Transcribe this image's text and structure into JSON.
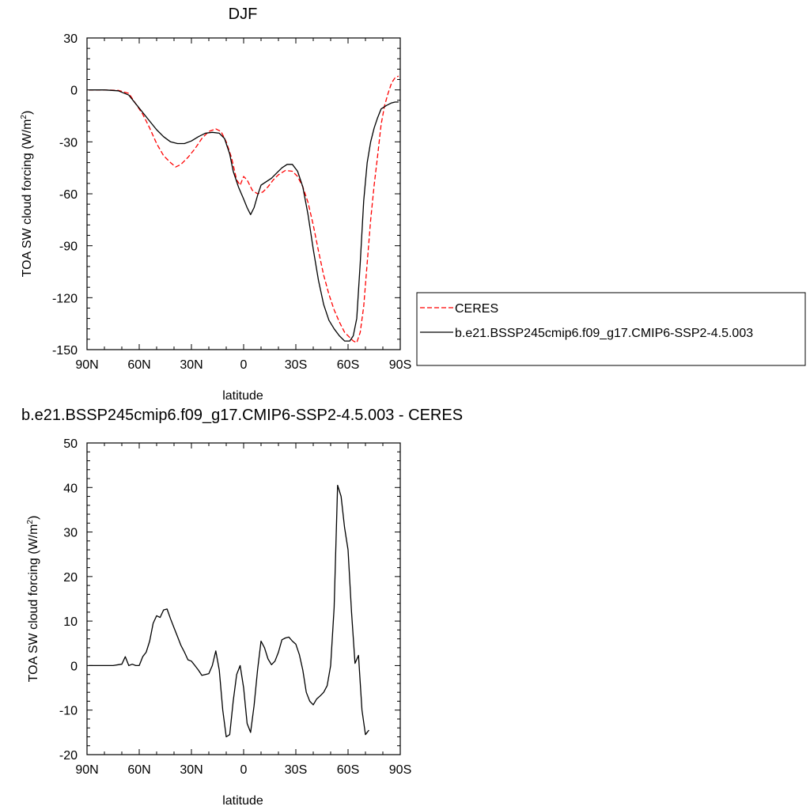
{
  "chart_data": [
    {
      "type": "line",
      "title": "DJF",
      "xlabel": "latitude",
      "ylabel": "TOA SW cloud forcing (W/m",
      "ylabel_sup": "2",
      "ylabel_close": ")",
      "xlim": [
        90,
        -90
      ],
      "ylim": [
        -150,
        30
      ],
      "x_ticks": [
        90,
        60,
        30,
        0,
        -30,
        -60,
        -90
      ],
      "x_tick_labels": [
        "90N",
        "60N",
        "30N",
        "0",
        "30S",
        "60S",
        "90S"
      ],
      "y_ticks": [
        30,
        0,
        -30,
        -60,
        -90,
        -120,
        -150
      ],
      "y_tick_labels": [
        "30",
        "0",
        "-30",
        "-60",
        "-90",
        "-120",
        "-150"
      ],
      "legend_position": "right",
      "series": [
        {
          "name": "CERES",
          "color": "#ff0000",
          "dash": "dashed",
          "points": [
            [
              89,
              0
            ],
            [
              80,
              0
            ],
            [
              72,
              -0.3
            ],
            [
              66,
              -2
            ],
            [
              62,
              -8
            ],
            [
              58,
              -14
            ],
            [
              54,
              -22
            ],
            [
              50,
              -31
            ],
            [
              46,
              -38
            ],
            [
              42,
              -42
            ],
            [
              39,
              -44.5
            ],
            [
              36,
              -43
            ],
            [
              32,
              -39
            ],
            [
              28,
              -34
            ],
            [
              24,
              -28
            ],
            [
              20,
              -24
            ],
            [
              16,
              -22.5
            ],
            [
              13,
              -24
            ],
            [
              10,
              -30
            ],
            [
              7,
              -39
            ],
            [
              4,
              -52
            ],
            [
              2,
              -55
            ],
            [
              0,
              -50
            ],
            [
              -2,
              -52
            ],
            [
              -5,
              -58
            ],
            [
              -8,
              -60
            ],
            [
              -11,
              -59
            ],
            [
              -14,
              -56
            ],
            [
              -17,
              -52
            ],
            [
              -20,
              -49
            ],
            [
              -24,
              -46.5
            ],
            [
              -28,
              -47
            ],
            [
              -31,
              -50
            ],
            [
              -34,
              -56
            ],
            [
              -37,
              -65
            ],
            [
              -40,
              -78
            ],
            [
              -43,
              -93
            ],
            [
              -46,
              -107
            ],
            [
              -49,
              -118
            ],
            [
              -52,
              -127
            ],
            [
              -55,
              -134
            ],
            [
              -58,
              -140
            ],
            [
              -61,
              -143
            ],
            [
              -63,
              -145
            ],
            [
              -65,
              -146
            ],
            [
              -67,
              -140
            ],
            [
              -69,
              -125
            ],
            [
              -71,
              -100
            ],
            [
              -73,
              -75
            ],
            [
              -75,
              -55
            ],
            [
              -77,
              -38
            ],
            [
              -79,
              -20
            ],
            [
              -81,
              -9
            ],
            [
              -83,
              -2
            ],
            [
              -85,
              4
            ],
            [
              -87,
              7
            ],
            [
              -89,
              8
            ]
          ]
        },
        {
          "name": "b.e21.BSSP245cmip6.f09_g17.CMIP6-SSP2-4.5.003",
          "color": "#000000",
          "dash": "solid",
          "points": [
            [
              89,
              0
            ],
            [
              80,
              0
            ],
            [
              72,
              -0.5
            ],
            [
              66,
              -3
            ],
            [
              62,
              -8
            ],
            [
              58,
              -13
            ],
            [
              54,
              -18
            ],
            [
              50,
              -23
            ],
            [
              46,
              -27
            ],
            [
              42,
              -30
            ],
            [
              38,
              -31
            ],
            [
              34,
              -31
            ],
            [
              30,
              -29.5
            ],
            [
              26,
              -27
            ],
            [
              22,
              -25
            ],
            [
              18,
              -24.5
            ],
            [
              14,
              -25
            ],
            [
              11,
              -28
            ],
            [
              8,
              -37
            ],
            [
              6,
              -47
            ],
            [
              3,
              -56
            ],
            [
              0,
              -63
            ],
            [
              -2,
              -68
            ],
            [
              -4,
              -72
            ],
            [
              -6,
              -68
            ],
            [
              -8,
              -61
            ],
            [
              -10,
              -55
            ],
            [
              -13,
              -53
            ],
            [
              -16,
              -51
            ],
            [
              -19,
              -48
            ],
            [
              -22,
              -45
            ],
            [
              -25,
              -43
            ],
            [
              -28,
              -43
            ],
            [
              -31,
              -47
            ],
            [
              -34,
              -56
            ],
            [
              -37,
              -72
            ],
            [
              -40,
              -92
            ],
            [
              -43,
              -110
            ],
            [
              -46,
              -124
            ],
            [
              -49,
              -133
            ],
            [
              -52,
              -138
            ],
            [
              -55,
              -142
            ],
            [
              -58,
              -145
            ],
            [
              -61,
              -145
            ],
            [
              -63,
              -142
            ],
            [
              -65,
              -132
            ],
            [
              -67,
              -100
            ],
            [
              -69,
              -64
            ],
            [
              -71,
              -42
            ],
            [
              -73,
              -30
            ],
            [
              -75,
              -22
            ],
            [
              -77,
              -16
            ],
            [
              -79,
              -11
            ],
            [
              -82,
              -9
            ],
            [
              -85,
              -7.5
            ],
            [
              -87,
              -7
            ],
            [
              -89,
              -7
            ]
          ]
        }
      ]
    },
    {
      "type": "line",
      "title": "b.e21.BSSP245cmip6.f09_g17.CMIP6-SSP2-4.5.003 - CERES",
      "xlabel": "latitude",
      "ylabel": "TOA SW cloud forcing (W/m",
      "ylabel_sup": "2",
      "ylabel_close": ")",
      "xlim": [
        90,
        -90
      ],
      "ylim": [
        -20,
        50
      ],
      "x_ticks": [
        90,
        60,
        30,
        0,
        -30,
        -60,
        -90
      ],
      "x_tick_labels": [
        "90N",
        "60N",
        "30N",
        "0",
        "30S",
        "60S",
        "90S"
      ],
      "y_ticks": [
        50,
        40,
        30,
        20,
        10,
        0,
        -10,
        -20
      ],
      "y_tick_labels": [
        "50",
        "40",
        "30",
        "20",
        "10",
        "0",
        "-10",
        "-20"
      ],
      "series": [
        {
          "color": "#000000",
          "dash": "solid",
          "points": [
            [
              89,
              0
            ],
            [
              82,
              0
            ],
            [
              75,
              0
            ],
            [
              72,
              0.2
            ],
            [
              70,
              0.3
            ],
            [
              68,
              2
            ],
            [
              66,
              0
            ],
            [
              64,
              0.3
            ],
            [
              62,
              0
            ],
            [
              60,
              0
            ],
            [
              58,
              2
            ],
            [
              56,
              3
            ],
            [
              54,
              5.5
            ],
            [
              52,
              9.5
            ],
            [
              50,
              11.2
            ],
            [
              48,
              10.8
            ],
            [
              46,
              12.5
            ],
            [
              44,
              12.7
            ],
            [
              42,
              10.5
            ],
            [
              40,
              8.5
            ],
            [
              38,
              6.5
            ],
            [
              36,
              4.5
            ],
            [
              34,
              3
            ],
            [
              32,
              1.3
            ],
            [
              30,
              1
            ],
            [
              28,
              0
            ],
            [
              26,
              -1
            ],
            [
              24,
              -2.2
            ],
            [
              22,
              -2
            ],
            [
              20,
              -1.8
            ],
            [
              18,
              0
            ],
            [
              16,
              3.3
            ],
            [
              14,
              -1
            ],
            [
              12,
              -10
            ],
            [
              10,
              -16
            ],
            [
              8,
              -15.5
            ],
            [
              6,
              -8
            ],
            [
              4,
              -2
            ],
            [
              2,
              0
            ],
            [
              0,
              -5
            ],
            [
              -2,
              -13
            ],
            [
              -4,
              -15
            ],
            [
              -6,
              -9
            ],
            [
              -8,
              -1
            ],
            [
              -10,
              5.5
            ],
            [
              -12,
              4
            ],
            [
              -14,
              1.5
            ],
            [
              -16,
              0.2
            ],
            [
              -18,
              1
            ],
            [
              -20,
              3
            ],
            [
              -22,
              5.8
            ],
            [
              -24,
              6.2
            ],
            [
              -26,
              6.4
            ],
            [
              -28,
              5.5
            ],
            [
              -30,
              4.8
            ],
            [
              -32,
              2.5
            ],
            [
              -34,
              -1
            ],
            [
              -36,
              -6
            ],
            [
              -38,
              -8
            ],
            [
              -40,
              -8.8
            ],
            [
              -42,
              -7.5
            ],
            [
              -44,
              -6.8
            ],
            [
              -46,
              -6
            ],
            [
              -48,
              -4.5
            ],
            [
              -50,
              0
            ],
            [
              -52,
              13
            ],
            [
              -54,
              40.5
            ],
            [
              -56,
              38
            ],
            [
              -58,
              31
            ],
            [
              -60,
              26
            ],
            [
              -62,
              12
            ],
            [
              -64,
              0.5
            ],
            [
              -66,
              2.3
            ],
            [
              -68,
              -10
            ],
            [
              -70,
              -15.5
            ],
            [
              -72,
              -14.5
            ]
          ]
        }
      ]
    }
  ]
}
